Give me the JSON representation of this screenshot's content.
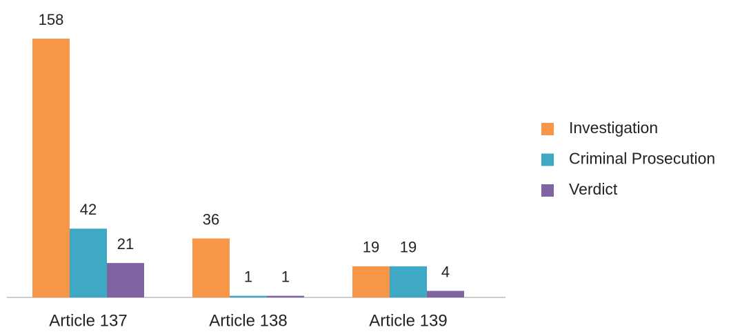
{
  "chart_data": {
    "type": "bar",
    "categories": [
      "Article 137",
      "Article 138",
      "Article 139"
    ],
    "series": [
      {
        "name": "Investigation",
        "color": "#f79646",
        "values": [
          158,
          36,
          19
        ]
      },
      {
        "name": "Criminal Prosecution",
        "color": "#3fa9c5",
        "values": [
          42,
          1,
          19
        ]
      },
      {
        "name": "Verdict",
        "color": "#8064a2",
        "values": [
          21,
          1,
          4
        ]
      }
    ],
    "legend": "right"
  }
}
